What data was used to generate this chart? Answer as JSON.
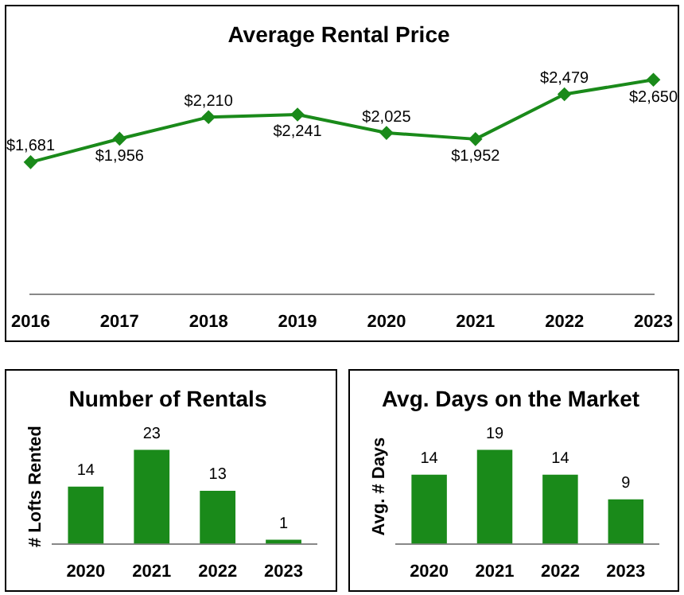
{
  "chart_data": [
    {
      "type": "line",
      "title": "Average Rental Price",
      "categories": [
        "2016",
        "2017",
        "2018",
        "2019",
        "2020",
        "2021",
        "2022",
        "2023"
      ],
      "values": [
        1681,
        1956,
        2210,
        2241,
        2025,
        1952,
        2479,
        2650
      ],
      "value_labels": [
        "$1,681",
        "$1,956",
        "$2,210",
        "$2,241",
        "$2,025",
        "$1,952",
        "$2,479",
        "$2,650"
      ],
      "color": "#1a8a1a",
      "marker": "diamond",
      "tick_labels": "x",
      "grid": false
    },
    {
      "type": "bar",
      "title": "Number of Rentals",
      "ylabel": "# Lofts Rented",
      "categories": [
        "2020",
        "2021",
        "2022",
        "2023"
      ],
      "values": [
        14,
        23,
        13,
        1
      ],
      "color": "#1a8a1a",
      "data_labels": true,
      "tick_labels": "x",
      "grid": false
    },
    {
      "type": "bar",
      "title": "Avg. Days on the Market",
      "ylabel": "Avg. # Days",
      "categories": [
        "2020",
        "2021",
        "2022",
        "2023"
      ],
      "values": [
        14,
        19,
        14,
        9
      ],
      "color": "#1a8a1a",
      "data_labels": true,
      "tick_labels": "x",
      "grid": false
    }
  ]
}
